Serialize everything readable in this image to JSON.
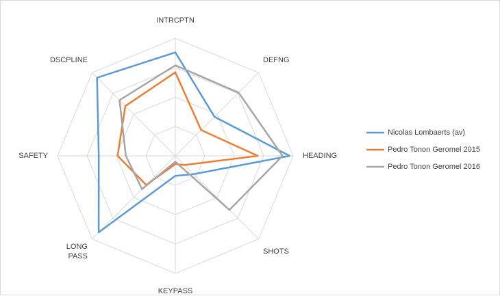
{
  "chart_data": {
    "type": "radar",
    "title": "",
    "axes": [
      "INTRCPTN",
      "DEFNG",
      "HEADING",
      "SHOTS",
      "KEYPASS",
      "LONG\nPASS",
      "SAFETY",
      "DSCPLINE"
    ],
    "rlim": [
      0,
      1
    ],
    "grid_rings": 4,
    "legend_position": "right",
    "series": [
      {
        "name": "Nicolas Lombaerts (av)",
        "color": "#5b9bd5",
        "values": [
          0.88,
          0.47,
          0.97,
          0.22,
          0.17,
          0.92,
          0.65,
          0.94
        ]
      },
      {
        "name": "Pedro Tonon Geromel 2015",
        "color": "#ed7d31",
        "values": [
          0.71,
          0.31,
          0.7,
          0.11,
          0.07,
          0.35,
          0.49,
          0.6
        ]
      },
      {
        "name": "Pedro Tonon Geromel 2016",
        "color": "#a5a5a5",
        "values": [
          0.77,
          0.76,
          0.91,
          0.65,
          0.05,
          0.4,
          0.42,
          0.67
        ]
      }
    ]
  }
}
